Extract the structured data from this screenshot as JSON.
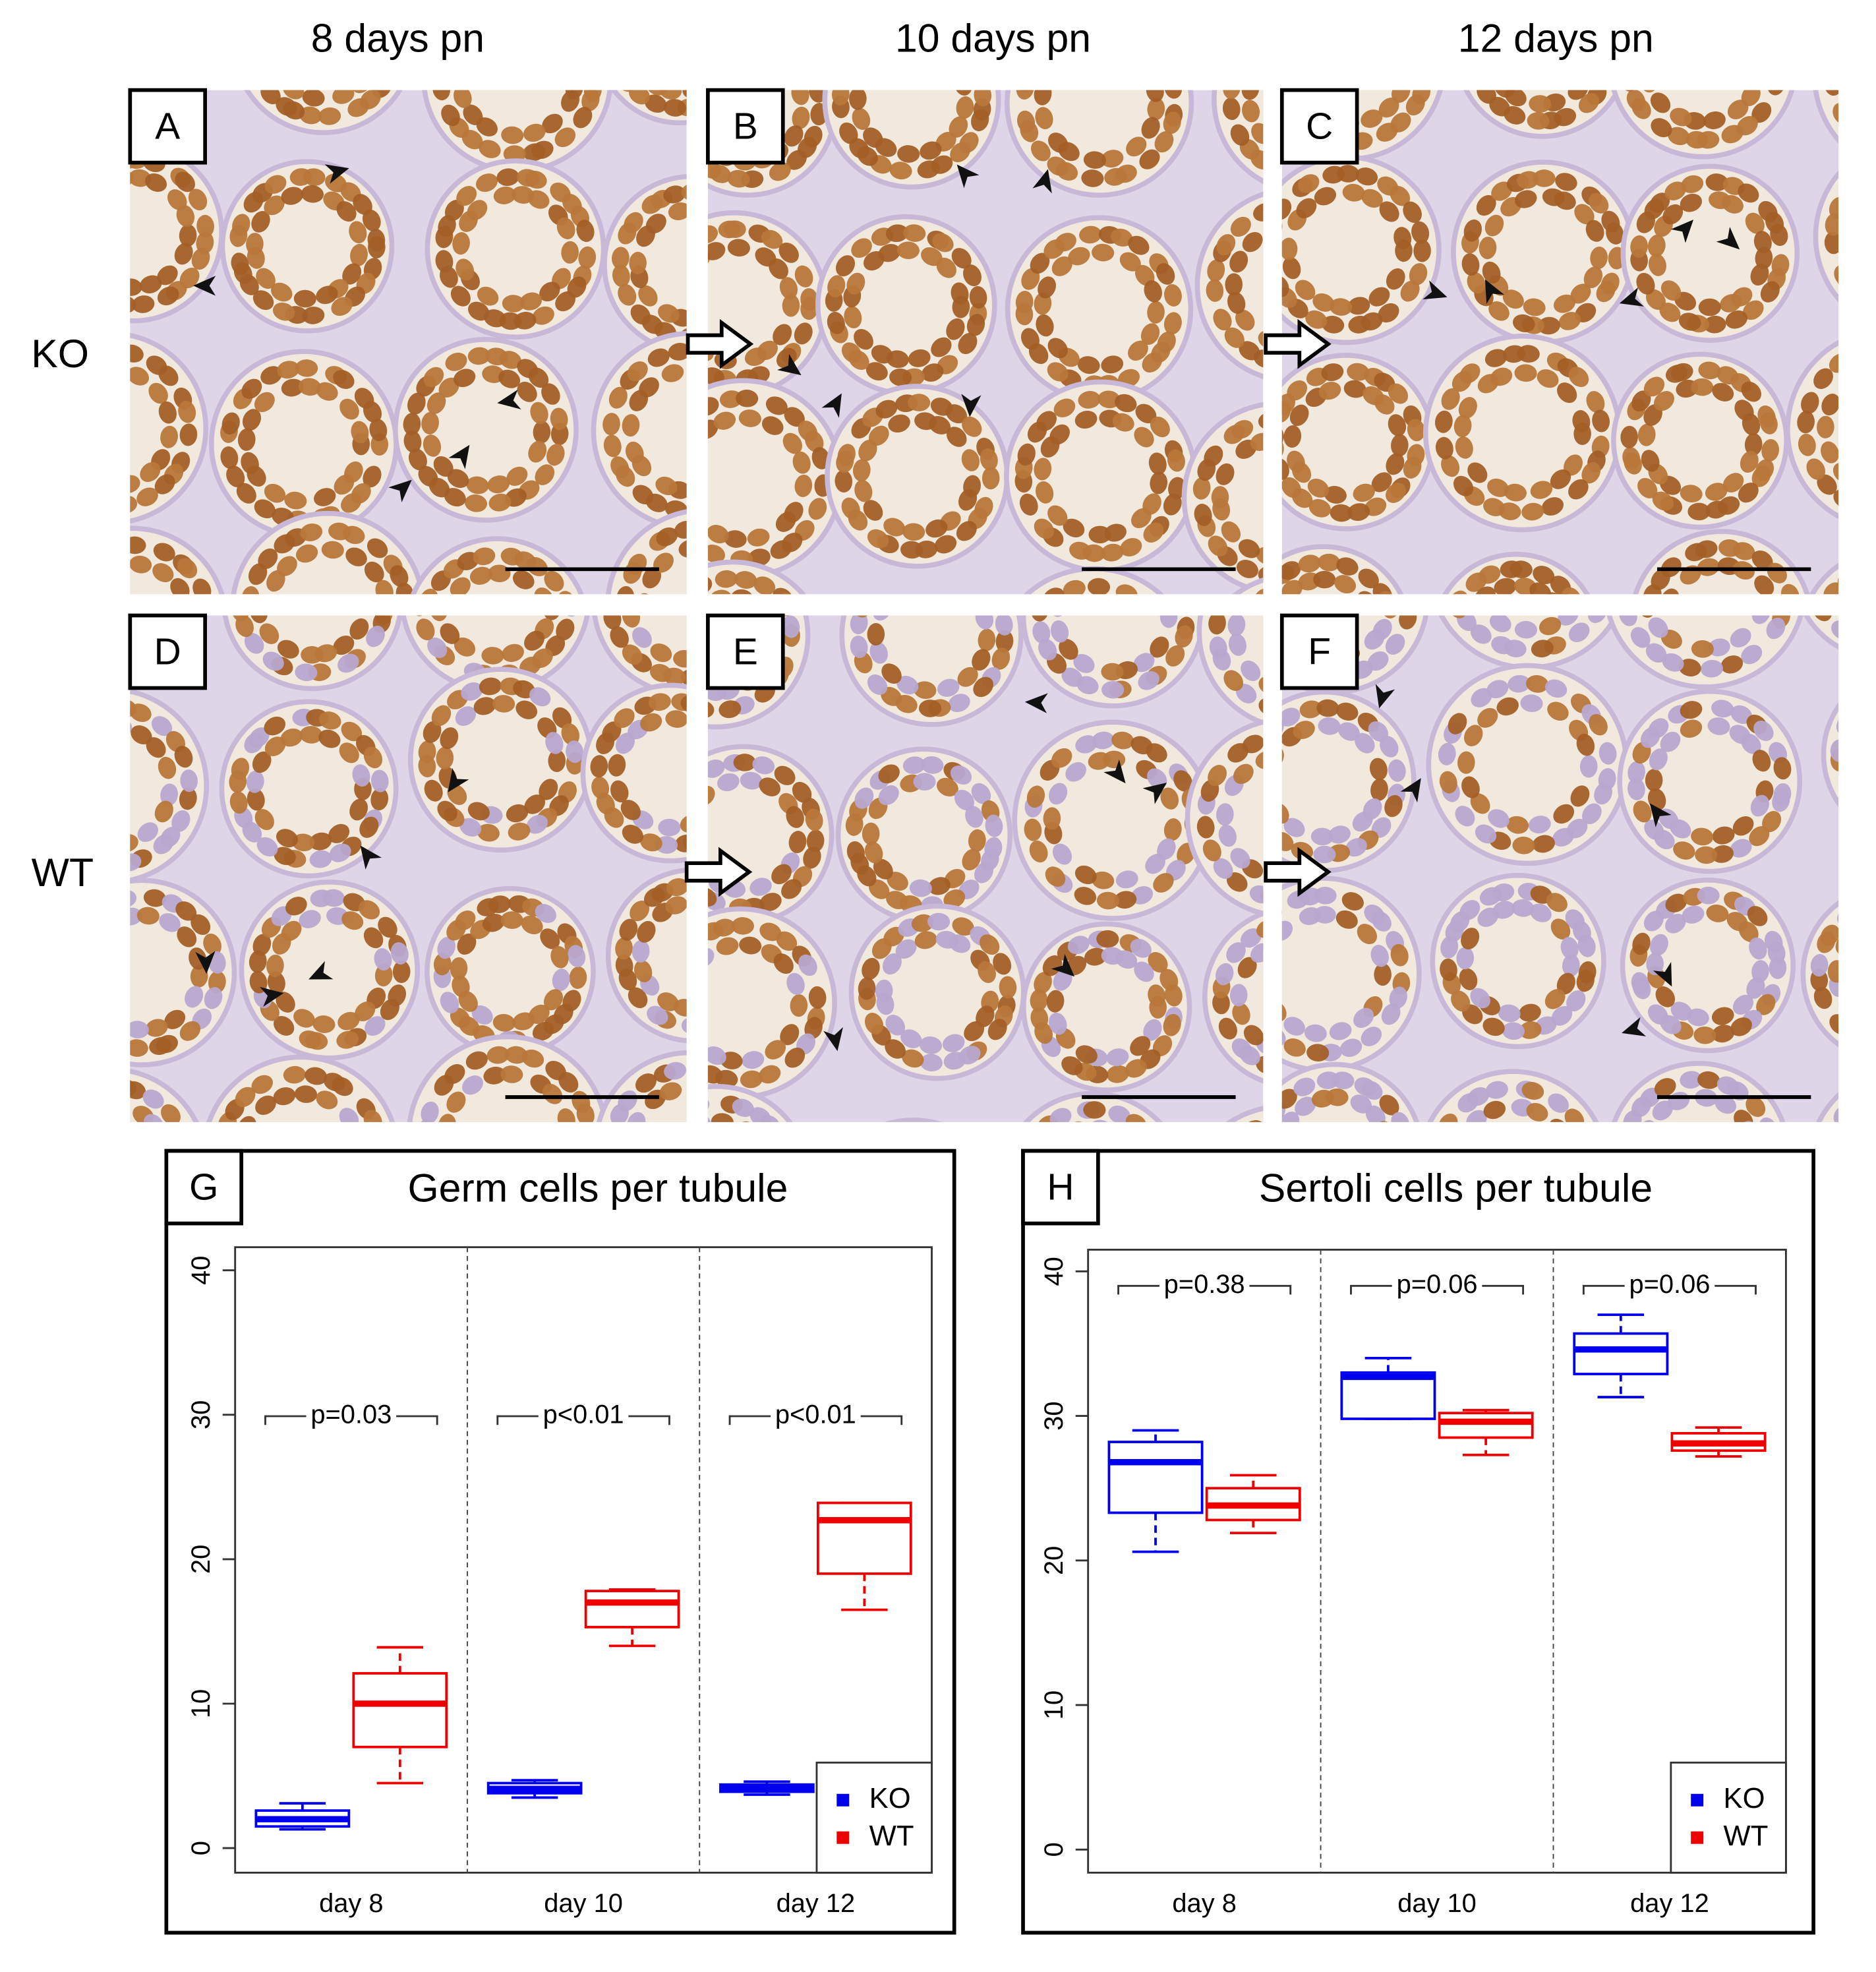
{
  "figure": {
    "column_headers": [
      "8 days pn",
      "10 days pn",
      "12 days pn"
    ],
    "row_labels": [
      "KO",
      "WT"
    ],
    "panels": [
      "A",
      "B",
      "C",
      "D",
      "E",
      "F"
    ]
  },
  "chart_data": [
    {
      "type": "boxplot",
      "panel": "G",
      "title": "Germ cells per tubule",
      "categories": [
        "day 8",
        "day 10",
        "day 12"
      ],
      "annotations": [
        "p=0.03",
        "p<0.01",
        "p<0.01"
      ],
      "ylim": [
        -1.7,
        41.6
      ],
      "yticks": [
        0,
        10,
        20,
        30,
        40
      ],
      "legend": "bottom-right",
      "series": [
        {
          "name": "KO",
          "color": "#0000ee",
          "whislo": [
            1.3,
            3.5,
            3.7
          ],
          "q1": [
            1.5,
            3.8,
            3.9
          ],
          "med": [
            2.0,
            4.1,
            4.1
          ],
          "q3": [
            2.6,
            4.5,
            4.4
          ],
          "whishi": [
            3.1,
            4.7,
            4.6
          ]
        },
        {
          "name": "WT",
          "color": "#ee0000",
          "whislo": [
            4.5,
            14.0,
            16.5
          ],
          "q1": [
            7.0,
            15.3,
            19.0
          ],
          "med": [
            10.0,
            17.0,
            22.7
          ],
          "q3": [
            12.1,
            17.8,
            23.9
          ],
          "whishi": [
            13.9,
            17.9,
            23.9
          ]
        }
      ]
    },
    {
      "type": "boxplot",
      "panel": "H",
      "title": "Sertoli cells per tubule",
      "categories": [
        "day 8",
        "day 10",
        "day 12"
      ],
      "annotations": [
        "p=0.38",
        "p=0.06",
        "p=0.06"
      ],
      "ylim": [
        -1.6,
        41.5
      ],
      "yticks": [
        0,
        10,
        20,
        30,
        40
      ],
      "legend": "bottom-right",
      "series": [
        {
          "name": "KO",
          "color": "#0000ee",
          "whislo": [
            20.6,
            29.8,
            31.3
          ],
          "q1": [
            23.3,
            29.8,
            32.9
          ],
          "med": [
            26.8,
            32.7,
            34.6
          ],
          "q3": [
            28.2,
            33.0,
            35.7
          ],
          "whishi": [
            29.0,
            34.0,
            37.0
          ]
        },
        {
          "name": "WT",
          "color": "#ee0000",
          "whislo": [
            21.9,
            27.3,
            27.2
          ],
          "q1": [
            22.8,
            28.5,
            27.6
          ],
          "med": [
            23.8,
            29.6,
            28.1
          ],
          "q3": [
            25.0,
            30.2,
            28.8
          ],
          "whishi": [
            25.9,
            30.4,
            29.2
          ]
        }
      ]
    }
  ]
}
